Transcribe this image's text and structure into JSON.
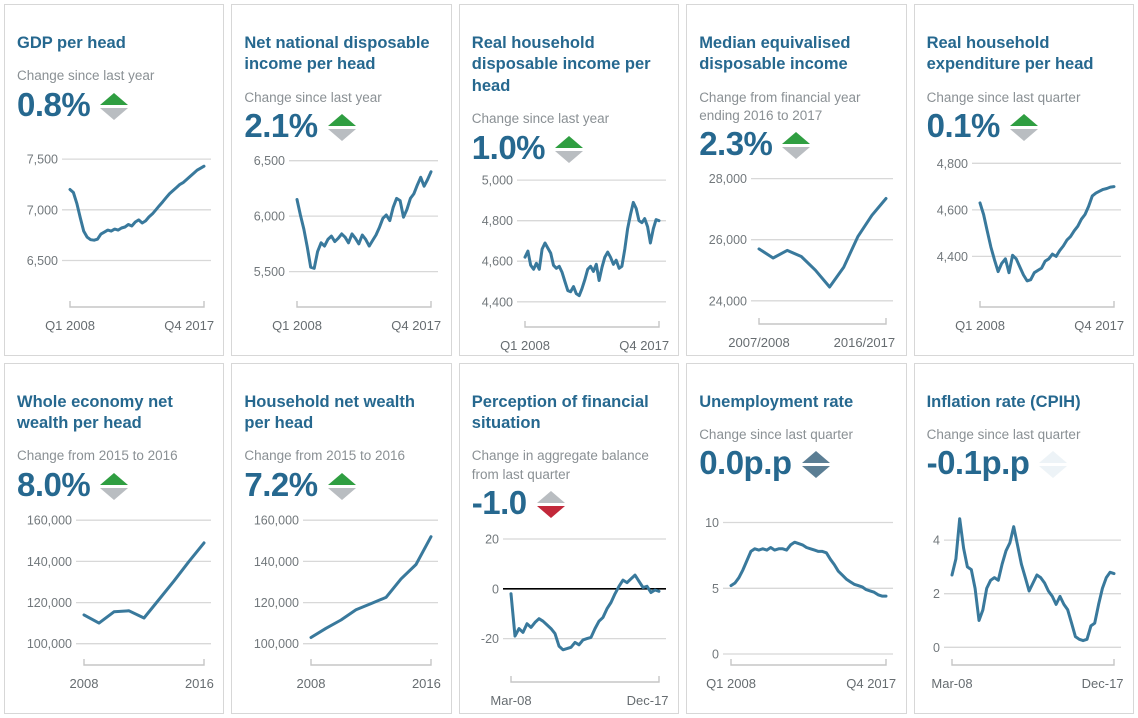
{
  "colors": {
    "title": "#26688f",
    "subtitle": "#8a9094",
    "value": "#26688f",
    "line": "#39799c",
    "grid": "#d8d8d8",
    "axis_bracket": "#c6c6c6",
    "tick_text": "#72787c",
    "xlabel_text": "#666c70",
    "up_green": "#2f9e41",
    "down_red": "#c2283a",
    "neutral_gray": "#b9bdc1",
    "flat_slate": "#5b7e94",
    "faint": "#edf3f7",
    "card_border": "#d7d7d7",
    "zero_line": "#000000"
  },
  "chart_data": [
    {
      "title": "GDP per head",
      "subtitle": "Change since last year",
      "value": "0.8%",
      "indicator": {
        "direction": "up",
        "up_color": "#2f9e41",
        "down_color": "#b9bdc1"
      },
      "type": "line",
      "x_labels": [
        "Q1 2008",
        "Q4 2017"
      ],
      "yticks": [
        7500,
        7000,
        6500
      ],
      "ytick_labels": [
        "7,500",
        "7,000",
        "6,500"
      ],
      "ylim": [
        6150,
        7550
      ],
      "zero_line": false,
      "values": [
        7200,
        7170,
        7060,
        6920,
        6790,
        6730,
        6705,
        6700,
        6710,
        6760,
        6780,
        6800,
        6790,
        6810,
        6800,
        6820,
        6830,
        6855,
        6840,
        6880,
        6900,
        6870,
        6890,
        6930,
        6960,
        7000,
        7040,
        7080,
        7120,
        7160,
        7190,
        7220,
        7250,
        7270,
        7300,
        7330,
        7360,
        7390,
        7410,
        7430
      ]
    },
    {
      "title": "Net national disposable income per head",
      "subtitle": "Change since last year",
      "value": "2.1%",
      "indicator": {
        "direction": "up",
        "up_color": "#2f9e41",
        "down_color": "#b9bdc1"
      },
      "type": "line",
      "x_labels": [
        "Q1 2008",
        "Q4 2017"
      ],
      "yticks": [
        6500,
        6000,
        5500
      ],
      "ytick_labels": [
        "6,500",
        "6,000",
        "5,500"
      ],
      "ylim": [
        5280,
        6560
      ],
      "zero_line": false,
      "values": [
        6150,
        6010,
        5880,
        5720,
        5540,
        5530,
        5680,
        5760,
        5730,
        5790,
        5820,
        5770,
        5800,
        5840,
        5810,
        5760,
        5840,
        5800,
        5750,
        5830,
        5790,
        5730,
        5780,
        5830,
        5900,
        5980,
        6010,
        5960,
        6080,
        6160,
        6140,
        5990,
        6060,
        6160,
        6200,
        6280,
        6350,
        6270,
        6330,
        6400
      ]
    },
    {
      "title": "Real household disposable income per head",
      "subtitle": "Change since last year",
      "value": "1.0%",
      "indicator": {
        "direction": "up",
        "up_color": "#2f9e41",
        "down_color": "#b9bdc1"
      },
      "type": "line",
      "x_labels": [
        "Q1 2008",
        "Q4 2017"
      ],
      "yticks": [
        5000,
        4800,
        4600,
        4400
      ],
      "ytick_labels": [
        "5,000",
        "4,800",
        "4,600",
        "4,400"
      ],
      "ylim": [
        4330,
        5030
      ],
      "zero_line": false,
      "values": [
        4620,
        4650,
        4580,
        4560,
        4590,
        4560,
        4660,
        4690,
        4665,
        4640,
        4580,
        4565,
        4575,
        4545,
        4500,
        4455,
        4450,
        4475,
        4440,
        4430,
        4465,
        4510,
        4560,
        4575,
        4550,
        4585,
        4505,
        4570,
        4620,
        4645,
        4620,
        4585,
        4605,
        4565,
        4575,
        4660,
        4760,
        4830,
        4890,
        4860,
        4800,
        4790,
        4810,
        4770,
        4690,
        4760,
        4805,
        4800
      ]
    },
    {
      "title": "Median equivalised disposable income",
      "subtitle": "Change from financial year ending 2016 to 2017",
      "value": "2.3%",
      "indicator": {
        "direction": "up",
        "up_color": "#2f9e41",
        "down_color": "#b9bdc1"
      },
      "type": "line",
      "x_labels": [
        "2007/2008",
        "2016/2017"
      ],
      "yticks": [
        28000,
        26000,
        24000
      ],
      "ytick_labels": [
        "28,000",
        "26,000",
        "24,000"
      ],
      "ylim": [
        23600,
        28250
      ],
      "zero_line": false,
      "values": [
        25700,
        25400,
        25650,
        25450,
        25000,
        24450,
        25100,
        26100,
        26800,
        27350
      ]
    },
    {
      "title": "Real household expenditure per head",
      "subtitle": "Change since last quarter",
      "value": "0.1%",
      "indicator": {
        "direction": "up",
        "up_color": "#2f9e41",
        "down_color": "#b9bdc1"
      },
      "type": "line",
      "x_labels": [
        "Q1 2008",
        "Q4 2017"
      ],
      "yticks": [
        4800,
        4600,
        4400
      ],
      "ytick_labels": [
        "4,800",
        "4,600",
        "4,400"
      ],
      "ylim": [
        4230,
        4840
      ],
      "zero_line": false,
      "values": [
        4630,
        4580,
        4510,
        4440,
        4385,
        4335,
        4370,
        4390,
        4330,
        4405,
        4390,
        4355,
        4320,
        4295,
        4300,
        4330,
        4340,
        4350,
        4380,
        4390,
        4410,
        4400,
        4425,
        4445,
        4470,
        4485,
        4510,
        4530,
        4560,
        4580,
        4615,
        4660,
        4672,
        4680,
        4688,
        4692,
        4698,
        4700
      ]
    },
    {
      "title": "Whole economy net wealth per head",
      "subtitle": "Change from 2015 to 2016",
      "value": "8.0%",
      "indicator": {
        "direction": "up",
        "up_color": "#2f9e41",
        "down_color": "#b9bdc1"
      },
      "type": "line",
      "x_labels": [
        "2008",
        "2016"
      ],
      "yticks": [
        160000,
        140000,
        120000,
        100000
      ],
      "ytick_labels": [
        "160,000",
        "140,000",
        "120,000",
        "100,000"
      ],
      "ylim": [
        95000,
        164000
      ],
      "zero_line": false,
      "values": [
        114000,
        110000,
        115500,
        116000,
        112500,
        121500,
        130500,
        140000,
        149000
      ]
    },
    {
      "title": "Household net wealth per head",
      "subtitle": "Change from 2015 to 2016",
      "value": "7.2%",
      "indicator": {
        "direction": "up",
        "up_color": "#2f9e41",
        "down_color": "#b9bdc1"
      },
      "type": "line",
      "x_labels": [
        "2008",
        "2016"
      ],
      "yticks": [
        160000,
        140000,
        120000,
        100000
      ],
      "ytick_labels": [
        "160,000",
        "140,000",
        "120,000",
        "100,000"
      ],
      "ylim": [
        95000,
        164000
      ],
      "zero_line": false,
      "values": [
        103000,
        107500,
        111500,
        116500,
        119500,
        122500,
        131500,
        138500,
        152000
      ]
    },
    {
      "title": "Perception of financial situation",
      "subtitle": "Change in aggregate balance from last quarter",
      "value": "-1.0",
      "indicator": {
        "direction": "down",
        "up_color": "#b9bdc1",
        "down_color": "#c2283a"
      },
      "type": "line",
      "x_labels": [
        "Mar-08",
        "Dec-17"
      ],
      "yticks": [
        20,
        0,
        -20
      ],
      "ytick_labels": [
        "20",
        "0",
        "-20"
      ],
      "ylim": [
        -33,
        24
      ],
      "zero_line": true,
      "values": [
        -2,
        -19,
        -16,
        -17.5,
        -14,
        -15.5,
        -13.5,
        -12,
        -13,
        -14.5,
        -16,
        -18,
        -23,
        -24.5,
        -24,
        -23.5,
        -21.5,
        -22.5,
        -20.5,
        -20,
        -19.5,
        -16,
        -13,
        -11.5,
        -8,
        -5.5,
        -2,
        1,
        3.5,
        2.5,
        4,
        5.5,
        3,
        0.5,
        1,
        -1.5,
        -0.5,
        -1
      ]
    },
    {
      "title": "Unemployment rate",
      "subtitle": "Change since last quarter",
      "value": "0.0p.p",
      "indicator": {
        "direction": "flat",
        "up_color": "#5b7e94",
        "down_color": "#5b7e94"
      },
      "type": "line",
      "x_labels": [
        "Q1 2008",
        "Q4 2017"
      ],
      "yticks": [
        10,
        5,
        0
      ],
      "ytick_labels": [
        "10",
        "5",
        "0"
      ],
      "ylim": [
        0,
        10.8
      ],
      "zero_line": false,
      "values": [
        5.2,
        5.4,
        5.8,
        6.4,
        7.1,
        7.8,
        8.0,
        7.9,
        8.0,
        7.9,
        8.1,
        7.9,
        8.0,
        8.0,
        7.9,
        8.3,
        8.5,
        8.4,
        8.3,
        8.1,
        8.0,
        7.9,
        7.8,
        7.8,
        7.7,
        7.2,
        6.8,
        6.3,
        6.0,
        5.7,
        5.5,
        5.3,
        5.2,
        5.1,
        4.9,
        4.8,
        4.7,
        4.5,
        4.4,
        4.4
      ]
    },
    {
      "title": "Inflation rate (CPIH)",
      "subtitle": "Change since last quarter",
      "value": "-0.1p.p",
      "indicator": {
        "direction": "faint",
        "up_color": "#edf3f7",
        "down_color": "#edf3f7"
      },
      "type": "line",
      "x_labels": [
        "Mar-08",
        "Dec-17"
      ],
      "yticks": [
        4,
        2,
        0
      ],
      "ytick_labels": [
        "4",
        "2",
        "0"
      ],
      "ylim": [
        -0.25,
        5.05
      ],
      "zero_line": false,
      "values": [
        2.7,
        3.3,
        4.8,
        3.7,
        3.0,
        2.9,
        2.2,
        1.0,
        1.4,
        2.2,
        2.5,
        2.6,
        2.5,
        3.1,
        3.6,
        3.9,
        4.5,
        3.8,
        3.1,
        2.6,
        2.1,
        2.4,
        2.7,
        2.6,
        2.4,
        2.1,
        1.9,
        1.6,
        1.9,
        1.6,
        1.4,
        0.9,
        0.4,
        0.3,
        0.25,
        0.3,
        0.8,
        0.9,
        1.6,
        2.2,
        2.6,
        2.8,
        2.75
      ]
    }
  ]
}
